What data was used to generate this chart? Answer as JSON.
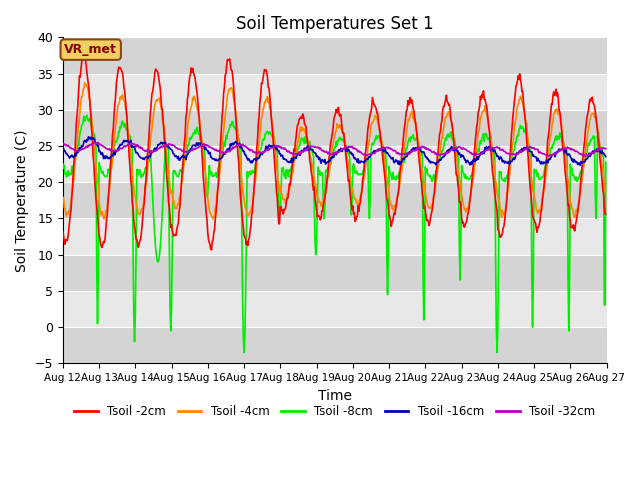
{
  "title": "Soil Temperatures Set 1",
  "xlabel": "Time",
  "ylabel": "Soil Temperature (C)",
  "ylim": [
    -5,
    40
  ],
  "annotation": "VR_met",
  "series": [
    "Tsoil -2cm",
    "Tsoil -4cm",
    "Tsoil -8cm",
    "Tsoil -16cm",
    "Tsoil -32cm"
  ],
  "colors": [
    "#ff0000",
    "#ff8800",
    "#00ee00",
    "#0000bb",
    "#bb00bb"
  ],
  "start_day": 12,
  "end_day": 27,
  "points_per_day": 48,
  "bg_dark": "#d4d4d4",
  "bg_light": "#e8e8e8",
  "title_fontsize": 12,
  "annotation_facecolor": "#f0d060",
  "annotation_edgecolor": "#8B4513",
  "annotation_textcolor": "#8B0000"
}
